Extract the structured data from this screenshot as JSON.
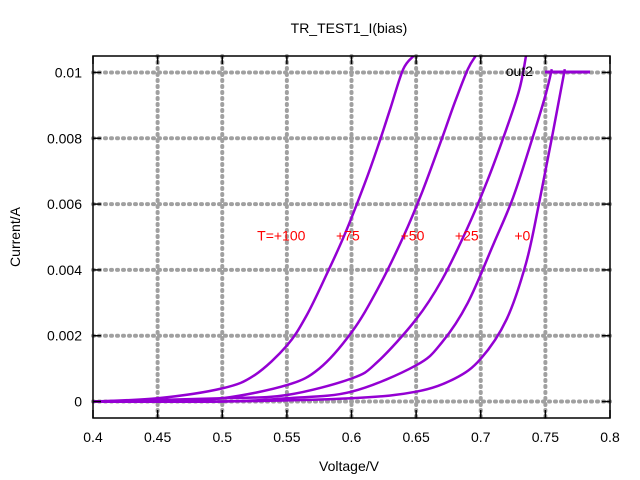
{
  "chart_data": {
    "type": "line",
    "title": "TR_TEST1_I(bias)",
    "xlabel": "Voltage/V",
    "ylabel": "Current/A",
    "xlim": [
      0.4,
      0.8
    ],
    "ylim": [
      -0.0005,
      0.0105
    ],
    "grid": true,
    "legend_position": "top-right",
    "x_ticks": [
      "0.4",
      "0.45",
      "0.5",
      "0.55",
      "0.6",
      "0.65",
      "0.7",
      "0.75",
      "0.8"
    ],
    "x_tick_values": [
      0.4,
      0.45,
      0.5,
      0.55,
      0.6,
      0.65,
      0.7,
      0.75,
      0.8
    ],
    "y_ticks": [
      "0",
      "0.002",
      "0.004",
      "0.006",
      "0.008",
      "0.01"
    ],
    "y_tick_values": [
      0,
      0.002,
      0.004,
      0.006,
      0.008,
      0.01
    ],
    "series": [
      {
        "name": "out2",
        "color": "#9400d3",
        "curves": [
          {
            "x": [
              0.4,
              0.45,
              0.5,
              0.525,
              0.55,
              0.565,
              0.58,
              0.595,
              0.61,
              0.62,
              0.63,
              0.64,
              0.648
            ],
            "y": [
              0.0,
              0.0001,
              0.0004,
              0.0008,
              0.0017,
              0.0026,
              0.0038,
              0.0051,
              0.0066,
              0.0077,
              0.0089,
              0.0101,
              0.0105
            ]
          },
          {
            "x": [
              0.4,
              0.45,
              0.5,
              0.55,
              0.575,
              0.6,
              0.62,
              0.64,
              0.655,
              0.67,
              0.68,
              0.69,
              0.696
            ],
            "y": [
              0.0,
              0.0,
              0.0001,
              0.0005,
              0.001,
              0.0021,
              0.0034,
              0.005,
              0.0064,
              0.008,
              0.0091,
              0.0101,
              0.0105
            ]
          },
          {
            "x": [
              0.4,
              0.5,
              0.55,
              0.6,
              0.62,
              0.65,
              0.67,
              0.69,
              0.705,
              0.72,
              0.73,
              0.735
            ],
            "y": [
              0.0,
              0.0001,
              0.0002,
              0.0007,
              0.0012,
              0.0025,
              0.0037,
              0.0053,
              0.0067,
              0.0083,
              0.0095,
              0.0105
            ]
          },
          {
            "x": [
              0.4,
              0.5,
              0.55,
              0.6,
              0.65,
              0.67,
              0.69,
              0.71,
              0.725,
              0.74,
              0.75,
              0.755
            ],
            "y": [
              0.0,
              0.0,
              0.0001,
              0.0003,
              0.0011,
              0.0018,
              0.003,
              0.0048,
              0.0062,
              0.008,
              0.0093,
              0.0101
            ]
          },
          {
            "x": [
              0.4,
              0.5,
              0.6,
              0.65,
              0.68,
              0.7,
              0.72,
              0.735,
              0.745,
              0.755,
              0.765
            ],
            "y": [
              0.0,
              0.0,
              0.0001,
              0.0003,
              0.0007,
              0.0013,
              0.0025,
              0.0042,
              0.006,
              0.008,
              0.0101
            ]
          }
        ]
      }
    ],
    "annotations": [
      {
        "text": "T=+100",
        "x": 0.527,
        "y": 0.0049,
        "color": "#ff0000"
      },
      {
        "text": "+75",
        "x": 0.588,
        "y": 0.0049,
        "color": "#ff0000"
      },
      {
        "text": "+50",
        "x": 0.638,
        "y": 0.0049,
        "color": "#ff0000"
      },
      {
        "text": "+25",
        "x": 0.68,
        "y": 0.0049,
        "color": "#ff0000"
      },
      {
        "text": "+0",
        "x": 0.726,
        "y": 0.0049,
        "color": "#ff0000"
      }
    ]
  }
}
